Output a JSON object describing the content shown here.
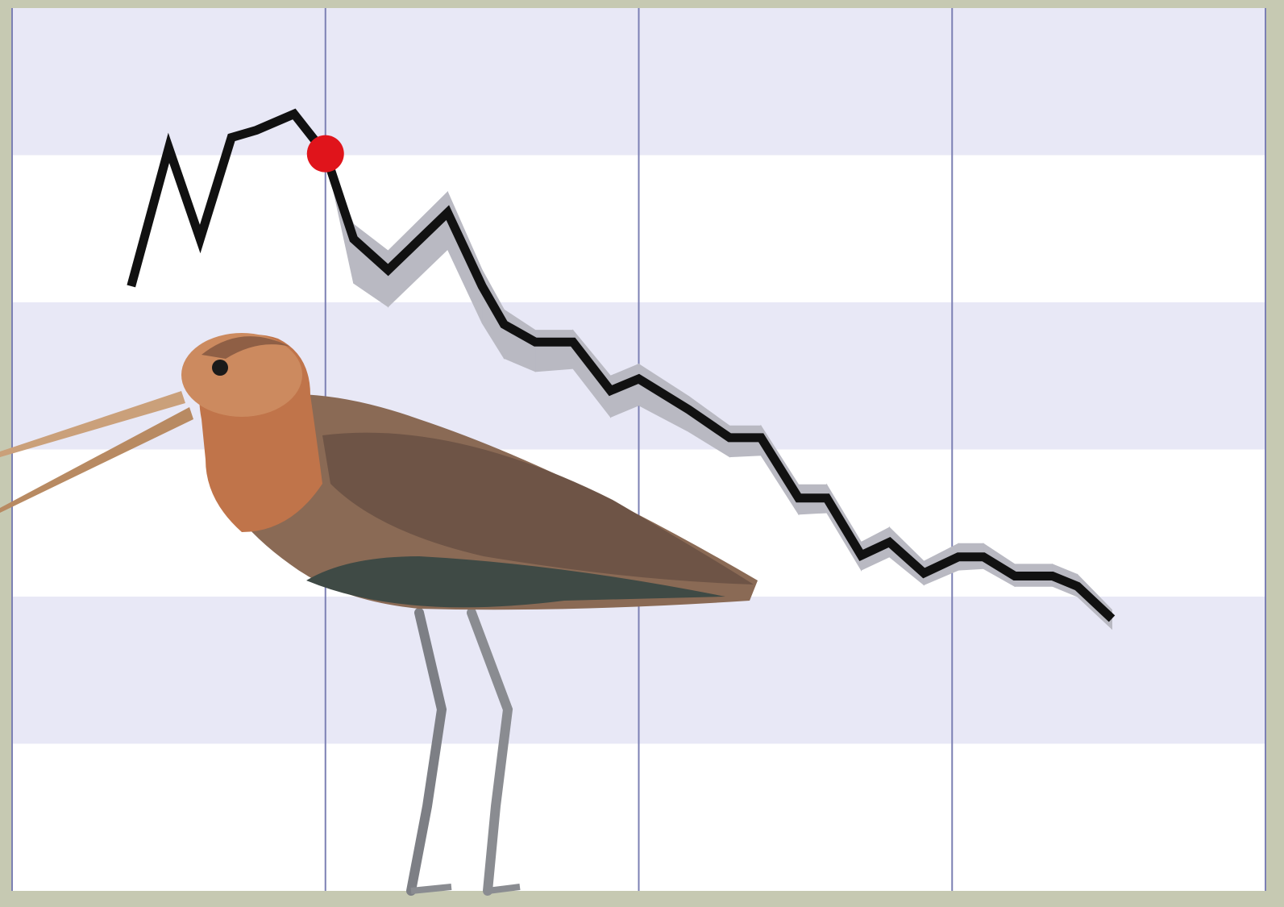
{
  "chart_data": {
    "type": "line",
    "x": [
      0.38,
      0.5,
      0.6,
      0.7,
      0.78,
      0.9,
      1.0,
      1.09,
      1.2,
      1.39,
      1.5,
      1.57,
      1.67,
      1.79,
      1.91,
      2.0,
      2.16,
      2.29,
      2.39,
      2.51,
      2.6,
      2.71,
      2.8,
      2.91,
      3.02,
      3.1,
      3.2,
      3.32,
      3.4,
      3.51
    ],
    "values": [
      4.11,
      5.05,
      4.43,
      5.12,
      5.17,
      5.28,
      5.01,
      4.43,
      4.22,
      4.61,
      4.11,
      3.85,
      3.73,
      3.73,
      3.4,
      3.48,
      3.27,
      3.08,
      3.08,
      2.67,
      2.67,
      2.28,
      2.37,
      2.16,
      2.27,
      2.27,
      2.14,
      2.14,
      2.07,
      1.85
    ],
    "color": "#111111",
    "band": {
      "color": "#b9b9c2",
      "lower": [
        null,
        null,
        null,
        null,
        null,
        null,
        5.01,
        4.13,
        3.97,
        4.36,
        3.86,
        3.62,
        3.53,
        3.55,
        3.22,
        3.3,
        3.12,
        2.95,
        2.96,
        2.56,
        2.57,
        2.18,
        2.27,
        2.08,
        2.18,
        2.19,
        2.07,
        2.07,
        2.0,
        1.78
      ],
      "upper": [
        null,
        null,
        null,
        null,
        null,
        null,
        5.01,
        4.53,
        4.35,
        4.75,
        4.22,
        3.95,
        3.81,
        3.81,
        3.5,
        3.58,
        3.36,
        3.16,
        3.16,
        2.76,
        2.76,
        2.37,
        2.47,
        2.24,
        2.36,
        2.36,
        2.22,
        2.22,
        2.15,
        1.91
      ]
    },
    "highlight_point": 6,
    "highlight_color": "#e0141b",
    "xlim": [
      0,
      4
    ],
    "ylim": [
      0,
      6
    ],
    "xticks": [
      0,
      1,
      2,
      3,
      4
    ],
    "yticks": [
      0,
      1,
      2,
      3,
      4,
      5,
      6
    ],
    "grid": true
  }
}
